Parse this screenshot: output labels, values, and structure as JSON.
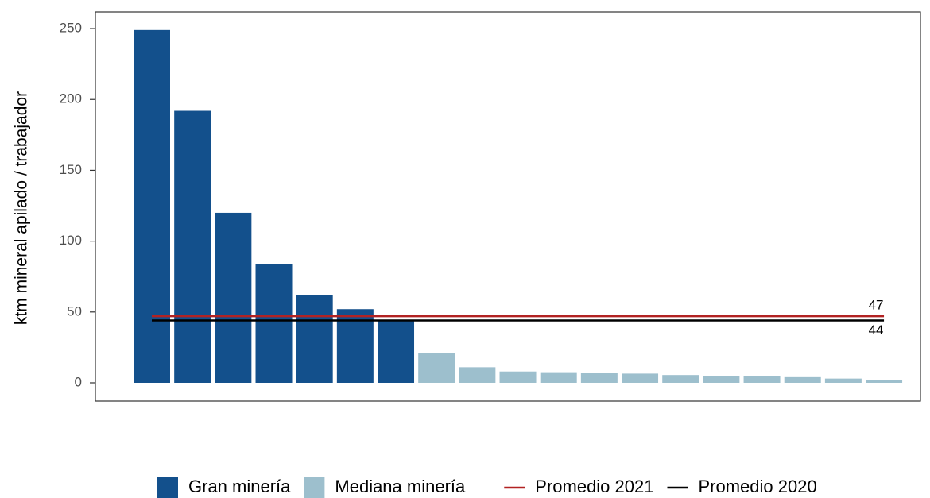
{
  "chart_data": {
    "type": "bar",
    "y_label": "ktm mineral apilado / trabajador",
    "categories": [
      null,
      null,
      null,
      null,
      null,
      null,
      null,
      null,
      null,
      null,
      null,
      null,
      null,
      null,
      null,
      null,
      null,
      null,
      null
    ],
    "series": [
      {
        "name": "Gran minería",
        "color": "#13508c",
        "values": [
          249,
          192,
          120,
          84,
          62,
          52,
          44,
          null,
          null,
          null,
          null,
          null,
          null,
          null,
          null,
          null,
          null,
          null,
          null
        ]
      },
      {
        "name": "Mediana minería",
        "color": "#9dbfcd",
        "values": [
          null,
          null,
          null,
          null,
          null,
          null,
          null,
          21,
          11,
          8,
          7.5,
          7,
          6.5,
          5.5,
          5,
          4.5,
          4,
          3,
          2
        ]
      }
    ],
    "reference_lines": [
      {
        "name": "Promedio 2021",
        "color": "#b22222",
        "value": 47
      },
      {
        "name": "Promedio 2020",
        "color": "#000000",
        "value": 44
      }
    ],
    "ylim": [
      -12.9,
      261.8
    ],
    "yticks": [
      0,
      50,
      100,
      150,
      200,
      250
    ],
    "grid": false
  }
}
